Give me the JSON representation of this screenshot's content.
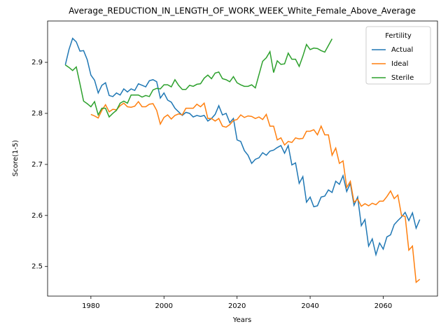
{
  "chart_data": {
    "type": "line",
    "title": "Average_REDUCTION_IN_LENGTH_OF_WORK_WEEK_White_Female_Above_Average",
    "xlabel": "Years",
    "ylabel": "Score(1-5)",
    "x": [
      1973,
      1974,
      1975,
      1976,
      1977,
      1978,
      1979,
      1980,
      1981,
      1982,
      1983,
      1984,
      1985,
      1986,
      1987,
      1988,
      1989,
      1990,
      1991,
      1992,
      1993,
      1994,
      1995,
      1996,
      1997,
      1998,
      1999,
      2000,
      2001,
      2002,
      2003,
      2004,
      2005,
      2006,
      2007,
      2008,
      2009,
      2010,
      2011,
      2012,
      2013,
      2014,
      2015,
      2016,
      2017,
      2018,
      2019,
      2020,
      2021,
      2022,
      2023,
      2024,
      2025,
      2026,
      2027,
      2028,
      2029,
      2030,
      2031,
      2032,
      2033,
      2034,
      2035,
      2036,
      2037,
      2038,
      2039,
      2040,
      2041,
      2042,
      2043,
      2044,
      2045,
      2046,
      2047,
      2048,
      2049,
      2050,
      2051,
      2052,
      2053,
      2054,
      2055,
      2056,
      2057,
      2058,
      2059,
      2060,
      2061,
      2062,
      2063,
      2064,
      2065,
      2066,
      2067,
      2068,
      2069,
      2070
    ],
    "series": [
      {
        "name": "Actual",
        "color": "#1f77b4",
        "values": [
          2.895,
          2.925,
          2.947,
          2.94,
          2.922,
          2.923,
          2.905,
          2.875,
          2.865,
          2.84,
          2.855,
          2.86,
          2.835,
          2.833,
          2.84,
          2.836,
          2.848,
          2.842,
          2.848,
          2.845,
          2.858,
          2.855,
          2.852,
          2.864,
          2.866,
          2.862,
          2.83,
          2.84,
          2.826,
          2.822,
          2.81,
          2.803,
          2.796,
          2.802,
          2.8,
          2.793,
          2.796,
          2.794,
          2.796,
          2.785,
          2.79,
          2.798,
          2.815,
          2.797,
          2.8,
          2.782,
          2.79,
          2.748,
          2.745,
          2.727,
          2.718,
          2.702,
          2.71,
          2.713,
          2.723,
          2.718,
          2.726,
          2.728,
          2.733,
          2.737,
          2.722,
          2.737,
          2.699,
          2.703,
          2.663,
          2.676,
          2.626,
          2.636,
          2.617,
          2.619,
          2.636,
          2.638,
          2.65,
          2.645,
          2.667,
          2.661,
          2.678,
          2.647,
          2.663,
          2.62,
          2.636,
          2.58,
          2.592,
          2.54,
          2.554,
          2.523,
          2.546,
          2.534,
          2.558,
          2.562,
          2.582,
          2.59,
          2.597,
          2.606,
          2.59,
          2.605,
          2.575,
          2.592
        ]
      },
      {
        "name": "Ideal",
        "color": "#ff7f0e",
        "values": [
          null,
          null,
          null,
          null,
          null,
          null,
          null,
          2.798,
          2.795,
          2.791,
          2.806,
          2.817,
          2.803,
          2.808,
          2.807,
          2.815,
          2.82,
          2.813,
          2.812,
          2.814,
          2.823,
          2.813,
          2.813,
          2.818,
          2.819,
          2.806,
          2.779,
          2.792,
          2.797,
          2.789,
          2.796,
          2.799,
          2.797,
          2.81,
          2.81,
          2.81,
          2.818,
          2.813,
          2.82,
          2.79,
          2.79,
          2.785,
          2.79,
          2.775,
          2.773,
          2.778,
          2.786,
          2.788,
          2.797,
          2.792,
          2.795,
          2.794,
          2.79,
          2.793,
          2.788,
          2.798,
          2.775,
          2.775,
          2.748,
          2.752,
          2.738,
          2.745,
          2.743,
          2.752,
          2.75,
          2.751,
          2.765,
          2.765,
          2.768,
          2.758,
          2.775,
          2.758,
          2.758,
          2.718,
          2.732,
          2.702,
          2.707,
          2.655,
          2.667,
          2.626,
          2.632,
          2.618,
          2.623,
          2.619,
          2.624,
          2.621,
          2.628,
          2.628,
          2.637,
          2.648,
          2.633,
          2.64,
          2.6,
          2.598,
          2.532,
          2.54,
          2.469,
          2.475
        ]
      },
      {
        "name": "Sterile",
        "color": "#2ca02c",
        "values": [
          2.895,
          2.89,
          2.884,
          2.891,
          2.858,
          2.824,
          2.819,
          2.813,
          2.823,
          2.797,
          2.81,
          2.81,
          2.793,
          2.8,
          2.806,
          2.82,
          2.824,
          2.82,
          2.836,
          2.836,
          2.836,
          2.832,
          2.835,
          2.833,
          2.846,
          2.849,
          2.848,
          2.856,
          2.856,
          2.852,
          2.866,
          2.855,
          2.847,
          2.847,
          2.855,
          2.853,
          2.857,
          2.858,
          2.869,
          2.875,
          2.868,
          2.879,
          2.881,
          2.868,
          2.866,
          2.862,
          2.872,
          2.86,
          2.856,
          2.853,
          2.853,
          2.856,
          2.85,
          2.876,
          2.902,
          2.909,
          2.921,
          2.88,
          2.903,
          2.896,
          2.897,
          2.918,
          2.906,
          2.906,
          2.892,
          2.912,
          2.935,
          2.925,
          2.928,
          2.927,
          2.923,
          2.92,
          2.933,
          2.946,
          null,
          null,
          null,
          null,
          null,
          null,
          null,
          null,
          null,
          null,
          null,
          null,
          null,
          null,
          null,
          null,
          null,
          null,
          null,
          null,
          null,
          null,
          null,
          null
        ]
      }
    ],
    "xlim": [
      1968.15,
      2074.85
    ],
    "xticks": [
      1980,
      2000,
      2020,
      2040,
      2060
    ],
    "ylim": [
      2.442,
      2.981
    ],
    "yticks": [
      2.5,
      2.6,
      2.7,
      2.8,
      2.9
    ],
    "legend": {
      "title": "Fertility",
      "loc": "upper right"
    }
  }
}
